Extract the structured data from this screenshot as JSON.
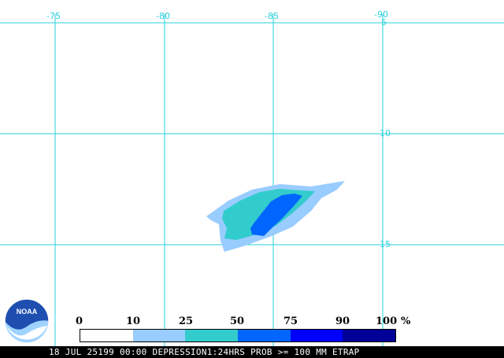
{
  "map": {
    "longitude_labels": [
      "-75",
      "-80",
      "-85",
      "-90"
    ],
    "latitude_labels": [
      "-5",
      "-10",
      "-15"
    ],
    "grid_color": "#2ad0dc",
    "background_color": "#ffffff"
  },
  "legend": {
    "ticks": [
      "0",
      "10",
      "25",
      "50",
      "75",
      "90",
      "100"
    ],
    "unit": "%",
    "bins": [
      {
        "from": 0,
        "to": 10,
        "color": "#ffffff"
      },
      {
        "from": 10,
        "to": 25,
        "color": "#99ccff"
      },
      {
        "from": 25,
        "to": 50,
        "color": "#33cccc"
      },
      {
        "from": 50,
        "to": 75,
        "color": "#0066ff"
      },
      {
        "from": 75,
        "to": 90,
        "color": "#0000ff"
      },
      {
        "from": 90,
        "to": 100,
        "color": "#000099"
      }
    ]
  },
  "logo": {
    "text": "NOAA"
  },
  "footer": {
    "text": "18 JUL 25199 00:00 DEPRESSION1:24HRS PROB >= 100 MM ETRAP"
  }
}
